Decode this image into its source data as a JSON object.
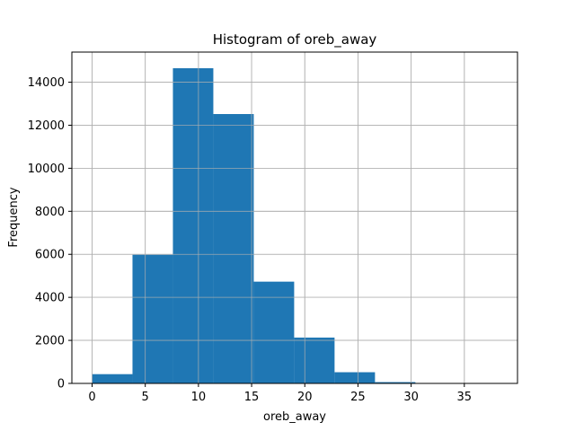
{
  "chart_data": {
    "type": "histogram",
    "title": "Histogram of oreb_away",
    "xlabel": "oreb_away",
    "ylabel": "Frequency",
    "xlim": [
      -1.9,
      40.0
    ],
    "ylim": [
      0,
      15400
    ],
    "xticks": [
      0,
      5,
      10,
      15,
      20,
      25,
      30,
      35
    ],
    "yticks": [
      0,
      2000,
      4000,
      6000,
      8000,
      10000,
      12000,
      14000
    ],
    "grid": true,
    "bar_color": "#1f77b4",
    "bins": [
      0,
      3.8,
      7.6,
      11.4,
      15.2,
      19.0,
      22.8,
      26.6,
      30.4,
      34.2,
      38.0
    ],
    "values": [
      430,
      5980,
      14650,
      12520,
      4730,
      2130,
      520,
      60,
      10,
      5
    ]
  }
}
